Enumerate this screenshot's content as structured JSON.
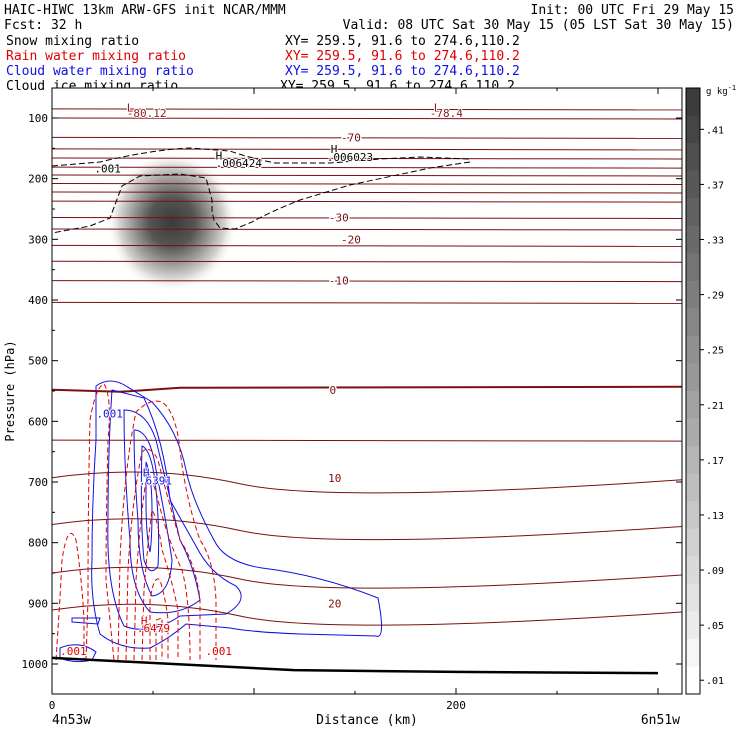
{
  "header": {
    "line1_left": "HAIC-HIWC 13km ARW-GFS init   NCAR/MMM",
    "line1_right": "Init: 00 UTC Fri 29 May 15",
    "line2_left": "Fcst:   32 h",
    "line2_right": "Valid: 08 UTC Sat 30 May 15 (05 LST Sat 30 May 15)"
  },
  "fields": [
    {
      "name": "Snow mixing ratio",
      "xy": "XY= 259.5, 91.6 to 274.6,110.2",
      "color": "#000000"
    },
    {
      "name": "Rain water mixing ratio",
      "xy": "XY= 259.5, 91.6 to 274.6,110.2",
      "color": "#e00000"
    },
    {
      "name": "Cloud water mixing ratio",
      "xy": "XY= 259.5, 91.6 to 274.6,110.2",
      "color": "#1010e0"
    },
    {
      "name": "Cloud ice mixing ratio",
      "xy": "XY= 259.5, 91.6 to 274.6,110.2",
      "color": "#000000"
    }
  ],
  "axes": {
    "ylabel": "Pressure (hPa)",
    "xlabel": "Distance (km)",
    "left_label": "4n53w",
    "right_label": "6n51w"
  },
  "colorbar": {
    "units": "g kg",
    "units_exponent": "-1",
    "ticks": [
      ".41",
      ".37",
      ".33",
      ".29",
      ".25",
      ".21",
      ".17",
      ".13",
      ".09",
      ".05",
      ".01"
    ]
  },
  "annotations": [
    {
      "text": "L",
      "x": 37,
      "p": 89,
      "color": "#8b1a1a"
    },
    {
      "text": "-80.12",
      "x": 37,
      "p": 98,
      "color": "#8b1a1a"
    },
    {
      "text": "L",
      "x": 189,
      "p": 89,
      "color": "#8b1a1a"
    },
    {
      "text": "-78.4",
      "x": 187,
      "p": 98,
      "color": "#8b1a1a"
    },
    {
      "text": "H",
      "x": 81,
      "p": 168,
      "color": "#000000"
    },
    {
      "text": ".006424",
      "x": 81,
      "p": 181,
      "color": "#000000"
    },
    {
      "text": "H",
      "x": 138,
      "p": 158,
      "color": "#000000"
    },
    {
      "text": ".006023",
      "x": 136,
      "p": 171,
      "color": "#000000"
    },
    {
      "text": ".001",
      "x": 21,
      "p": 190,
      "color": "#000000"
    },
    {
      "text": ".001",
      "x": 22,
      "p": 594,
      "color": "#1010e0"
    },
    {
      "text": "H",
      "x": 45,
      "p": 691,
      "color": "#1010e0"
    },
    {
      "text": ".6391",
      "x": 43,
      "p": 704,
      "color": "#1010e0"
    },
    {
      "text": "H",
      "x": 44,
      "p": 935,
      "color": "#e00000"
    },
    {
      "text": ".6479",
      "x": 42,
      "p": 947,
      "color": "#e00000"
    },
    {
      "text": ".001",
      "x": 4,
      "p": 985,
      "color": "#e00000"
    },
    {
      "text": ".001",
      "x": 76,
      "p": 985,
      "color": "#e00000"
    }
  ],
  "chart_data": {
    "type": "cross-section contour",
    "xlim": [
      0,
      300
    ],
    "ylim": [
      1050,
      70
    ],
    "x_ticks": [
      0,
      200
    ],
    "y_ticks": [
      100,
      200,
      300,
      400,
      500,
      600,
      700,
      800,
      900,
      1000
    ],
    "x_tick_labels": [
      "0",
      "200"
    ],
    "y_tick_labels": [
      "100",
      "200",
      "300",
      "400",
      "500",
      "600",
      "700",
      "800",
      "900",
      "1000"
    ],
    "temperature_isotherms": {
      "color": "#7a1010",
      "interval": 5,
      "lines": [
        {
          "t": -80,
          "p": 85
        },
        {
          "t": -75,
          "p": 100
        },
        {
          "t": -70,
          "p": 132
        },
        {
          "t": -65,
          "p": 151
        },
        {
          "t": -60,
          "p": 166
        },
        {
          "t": -55,
          "p": 181
        },
        {
          "t": -50,
          "p": 194
        },
        {
          "t": -45,
          "p": 208
        },
        {
          "t": -40,
          "p": 222
        },
        {
          "t": -35,
          "p": 237
        },
        {
          "t": -30,
          "p": 264
        },
        {
          "t": -25,
          "p": 283
        },
        {
          "t": -20,
          "p": 310
        },
        {
          "t": -15,
          "p": 336
        },
        {
          "t": -10,
          "p": 368
        },
        {
          "t": -5,
          "p": 404
        },
        {
          "t": 0,
          "p": 548
        },
        {
          "t": 5,
          "p": 631
        },
        {
          "t": 10,
          "p": 693
        },
        {
          "t": 15,
          "p": 770
        },
        {
          "t": 20,
          "p": 850
        },
        {
          "t": 25,
          "p": 911
        }
      ],
      "labels": [
        {
          "text": "-70",
          "x": 148,
          "p": 132
        },
        {
          "text": "-30",
          "x": 142,
          "p": 264
        },
        {
          "text": "-20",
          "x": 148,
          "p": 300
        },
        {
          "text": "-10",
          "x": 142,
          "p": 368
        },
        {
          "text": "0",
          "x": 139,
          "p": 548
        },
        {
          "text": "10",
          "x": 140,
          "p": 693
        },
        {
          "text": "20",
          "x": 140,
          "p": 900
        }
      ]
    },
    "snow_mixing_ratio": {
      "center_x": 50,
      "center_p": 240,
      "max": 0.42,
      "units": "g kg-1"
    },
    "cloud_ice_contour": {
      "value": 0.001
    },
    "ground": {
      "points": [
        [
          0,
          990
        ],
        [
          60,
          1000
        ],
        [
          120,
          1010
        ],
        [
          200,
          1013
        ],
        [
          300,
          1015
        ]
      ]
    }
  }
}
